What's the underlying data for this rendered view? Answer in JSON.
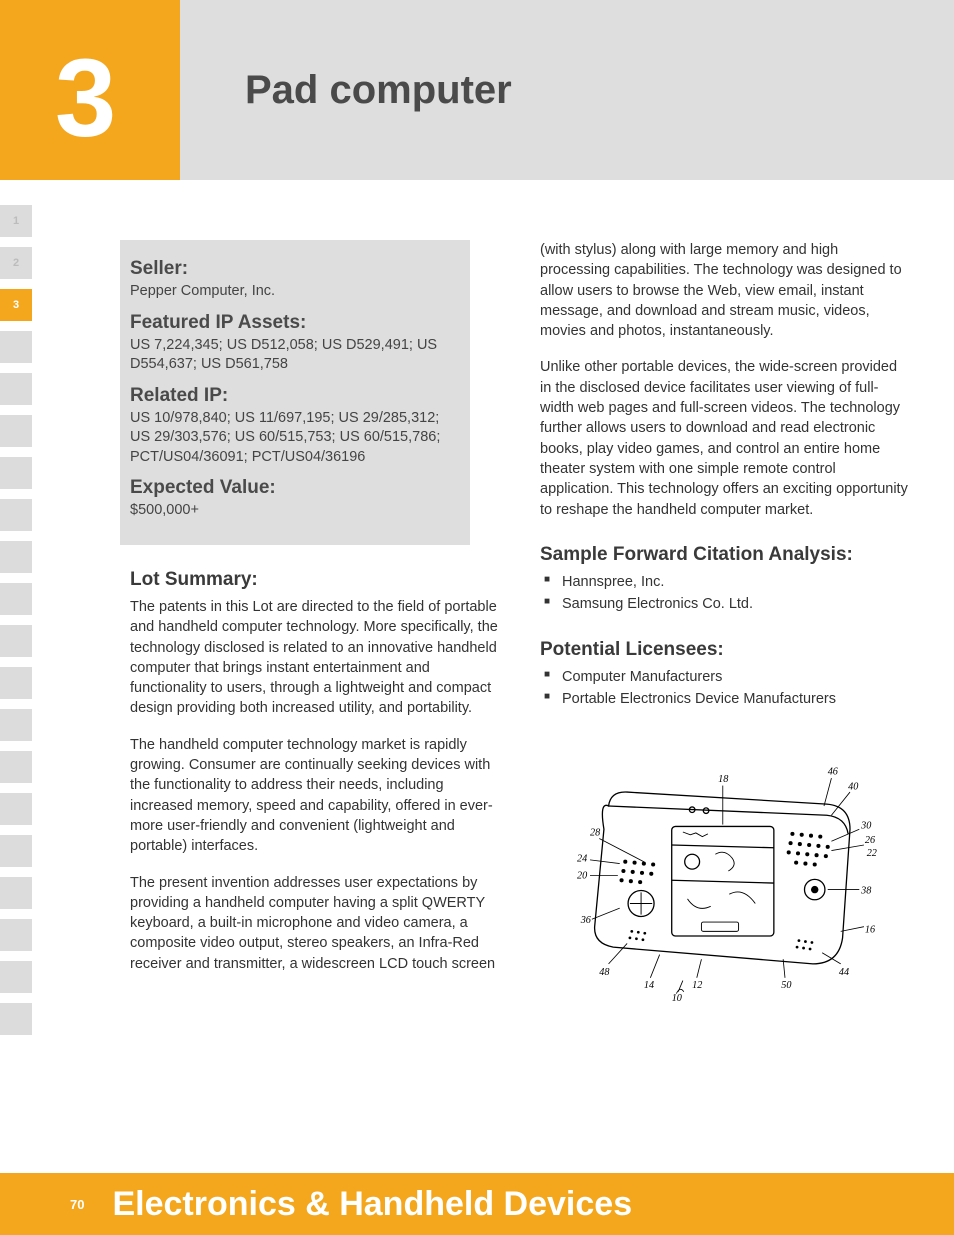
{
  "header": {
    "chapter_number": "3",
    "title": "Pad computer",
    "colors": {
      "orange": "#f4a71d",
      "grey": "#dedede",
      "text_dark": "#4a4a4a"
    }
  },
  "side_tabs": [
    {
      "label": "1",
      "active": false
    },
    {
      "label": "2",
      "active": false
    },
    {
      "label": "3",
      "active": true
    },
    {
      "label": "",
      "active": false
    },
    {
      "label": "",
      "active": false
    },
    {
      "label": "",
      "active": false
    },
    {
      "label": "",
      "active": false
    },
    {
      "label": "",
      "active": false
    },
    {
      "label": "",
      "active": false
    },
    {
      "label": "",
      "active": false
    },
    {
      "label": "",
      "active": false
    },
    {
      "label": "",
      "active": false
    },
    {
      "label": "",
      "active": false
    },
    {
      "label": "",
      "active": false
    },
    {
      "label": "",
      "active": false
    },
    {
      "label": "",
      "active": false
    },
    {
      "label": "",
      "active": false
    },
    {
      "label": "",
      "active": false
    },
    {
      "label": "",
      "active": false
    },
    {
      "label": "",
      "active": false
    }
  ],
  "info_box": {
    "seller": {
      "heading": "Seller:",
      "body": "Pepper Computer, Inc."
    },
    "featured": {
      "heading": "Featured IP Assets:",
      "body": "US 7,224,345; US D512,058; US D529,491; US D554,637; US D561,758"
    },
    "related": {
      "heading": "Related IP:",
      "body": "US 10/978,840; US 11/697,195; US 29/285,312; US 29/303,576; US 60/515,753; US 60/515,786; PCT/US04/36091; PCT/US04/36196"
    },
    "expected": {
      "heading": "Expected Value:",
      "body": "$500,000+"
    }
  },
  "lot_summary": {
    "heading": "Lot Summary:",
    "paras": [
      "The patents in this Lot are directed to the field of portable and handheld computer technology. More specifically, the technology disclosed is related to an innovative handheld computer that brings instant entertainment and functionality to users, through a lightweight and compact design providing both increased utility, and portability.",
      "The handheld computer technology market is rapidly growing.  Consumer are continually seeking devices with the functionality to address their needs, including increased memory, speed and capability, offered in ever-more user-friendly and convenient (lightweight and portable) interfaces.",
      "The present invention addresses user expectations by providing a handheld computer having a split QWERTY keyboard, a built-in microphone and video camera, a composite video output, stereo speakers, an Infra-Red receiver and transmitter, a widescreen LCD touch screen"
    ]
  },
  "right_col": {
    "cont_paras": [
      "(with stylus) along with large memory and high processing capabilities. The technology was designed to allow users to browse the Web, view email, instant message, and download and stream music, videos, movies and photos, instantaneously.",
      "Unlike other portable devices, the wide-screen provided in the disclosed device facilitates user viewing of full-width web pages and full-screen videos. The technology further allows users to download and read electronic books, play video games, and control an entire home theater system with one simple remote control application. This technology offers an exciting opportunity to reshape the handheld computer market."
    ],
    "citation": {
      "heading": "Sample Forward Citation Analysis:",
      "items": [
        "Hannspree, Inc.",
        "Samsung Electronics Co. Ltd."
      ]
    },
    "licensees": {
      "heading": "Potential Licensees:",
      "items": [
        "Computer Manufacturers",
        "Portable Electronics Device Manufacturers"
      ]
    }
  },
  "figure": {
    "type": "patent-drawing",
    "description": "handheld pad computer with split keyboard and screen",
    "callout_numbers": [
      "10",
      "12",
      "14",
      "16",
      "18",
      "20",
      "22",
      "24",
      "26",
      "28",
      "30",
      "36",
      "38",
      "40",
      "44",
      "46",
      "48",
      "50"
    ],
    "stroke_color": "#000000",
    "line_width": 1.2
  },
  "footer": {
    "page_number": "70",
    "category": "Electronics & Handheld Devices",
    "bg_color": "#f4a71d",
    "text_color": "#ffffff"
  }
}
